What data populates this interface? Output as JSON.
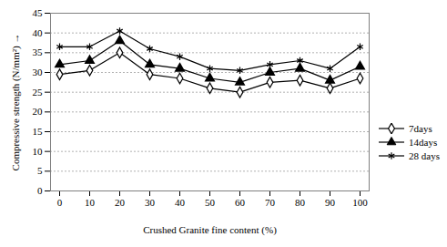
{
  "chart_data": {
    "type": "line",
    "x_label": "Crushed Granite fine content (%)",
    "y_label": "Compressive strength (N/mm²)",
    "categories": [
      "0",
      "10",
      "20",
      "30",
      "40",
      "50",
      "60",
      "70",
      "80",
      "90",
      "100"
    ],
    "series": [
      {
        "name": "7days",
        "color": "#000000",
        "marker": "diamond_open",
        "values": [
          29.5,
          30.5,
          35,
          29.5,
          28.5,
          26,
          25,
          27.5,
          28,
          26,
          28.5
        ]
      },
      {
        "name": "14days",
        "color": "#000000",
        "marker": "triangle",
        "values": [
          32,
          33,
          38,
          32,
          31,
          28.5,
          27.5,
          30,
          31,
          28,
          31.5
        ]
      },
      {
        "name": "28 days",
        "color": "#000000",
        "marker": "asterisk",
        "values": [
          36.5,
          36.5,
          40.5,
          36,
          34,
          31,
          30.5,
          32,
          33,
          31,
          36.5
        ]
      }
    ],
    "ylim": [
      0,
      45
    ],
    "yticks": [
      0,
      5,
      10,
      15,
      20,
      25,
      30,
      35,
      40,
      45
    ],
    "grid": true,
    "legend": "right"
  }
}
